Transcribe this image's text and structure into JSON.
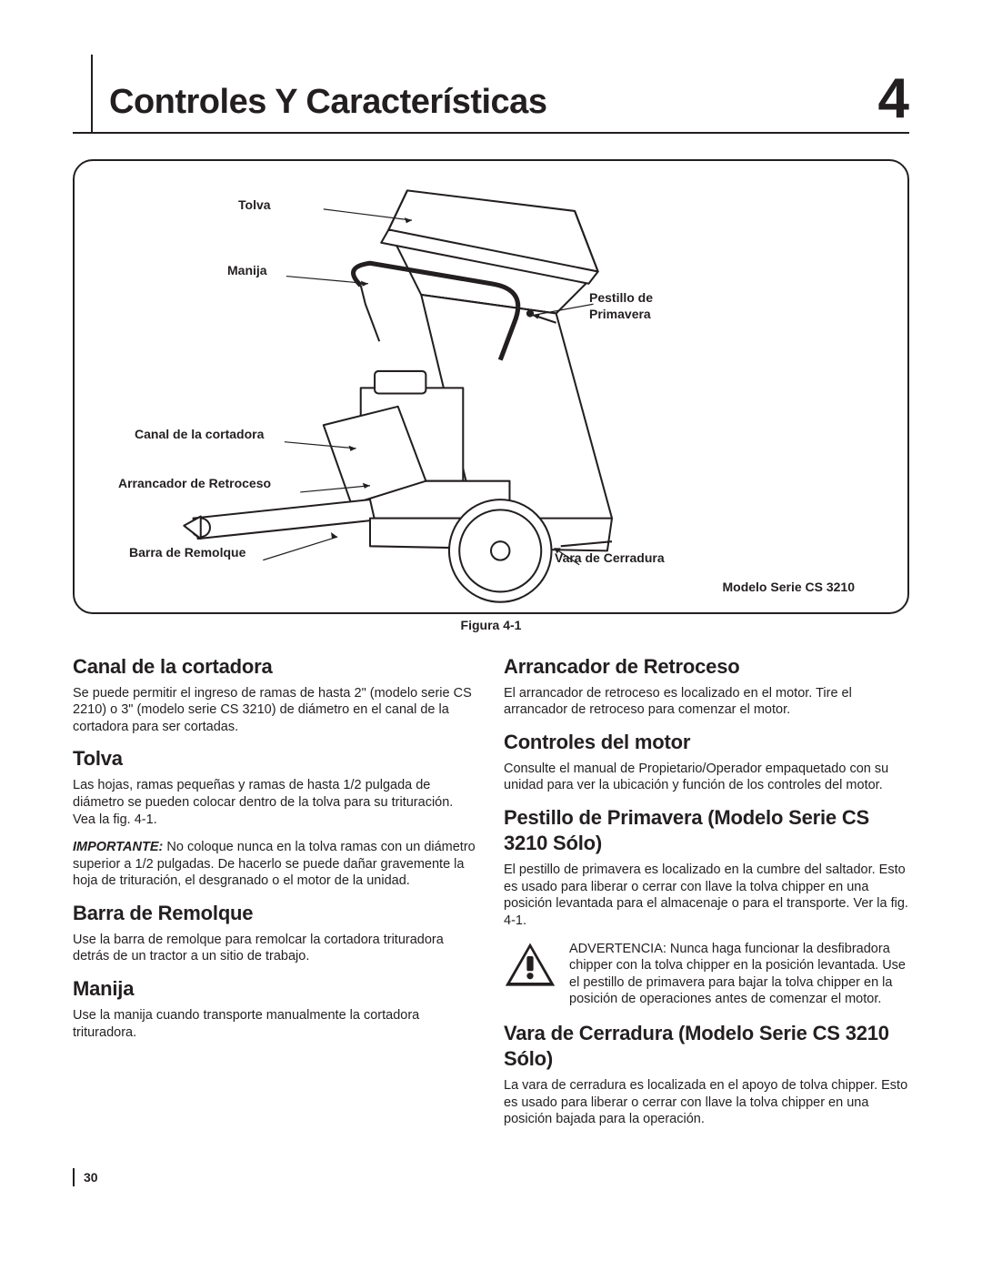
{
  "header": {
    "title": "Controles Y Características",
    "chapter_number": "4"
  },
  "figure": {
    "caption": "Figura 4-1",
    "model_label": "Modelo Serie CS 3210",
    "callouts": {
      "tolva": "Tolva",
      "manija": "Manija",
      "pestillo": "Pestillo de\nPrimavera",
      "canal": "Canal de la cortadora",
      "arrancador": "Arrancador de Retroceso",
      "barra": "Barra de Remolque",
      "vara": "Vara de Cerradura"
    },
    "diagram_stroke": "#231f20",
    "diagram_fill": "#ffffff"
  },
  "left_column": [
    {
      "heading": "Canal de la cortadora",
      "paragraphs": [
        {
          "text": "Se puede permitir el ingreso de ramas de hasta 2\" (modelo serie CS 2210)  o 3\" (modelo serie CS 3210) de diámetro en el canal de la cortadora para ser cortadas."
        }
      ]
    },
    {
      "heading": "Tolva",
      "paragraphs": [
        {
          "text": "Las hojas, ramas pequeñas y ramas de hasta 1/2 pulgada de diámetro se pueden colocar dentro de la tolva para su trituración. Vea la fig. 4-1."
        },
        {
          "lead": "IMPORTANTE:",
          "lead_style": "italic",
          "text": " No coloque nunca en la tolva ramas con un diámetro superior a 1/2 pulgadas. De hacerlo se puede dañar gravemente la hoja de trituración, el desgranado o el motor de la unidad."
        }
      ]
    },
    {
      "heading": "Barra de Remolque",
      "paragraphs": [
        {
          "text": "Use la barra de remolque para remolcar la cortadora trituradora detrás de un tractor a un sitio de trabajo."
        }
      ]
    },
    {
      "heading": "Manija",
      "paragraphs": [
        {
          "text": "Use la manija cuando transporte manualmente la cortadora trituradora."
        }
      ]
    }
  ],
  "right_column": [
    {
      "heading": "Arrancador de Retroceso",
      "paragraphs": [
        {
          "text": "El arrancador de retroceso es localizado en el motor. Tire el arrancador de retroceso para comenzar el motor."
        }
      ]
    },
    {
      "heading": "Controles del motor",
      "paragraphs": [
        {
          "text": "Consulte el manual de Propietario/Operador empaquetado con su unidad para ver la ubicación y función de los controles del motor."
        }
      ]
    },
    {
      "heading": "Pestillo de Primavera (Modelo Serie CS 3210 Sólo)",
      "paragraphs": [
        {
          "text": "El pestillo de primavera es localizado en la cumbre del saltador. Esto es usado para liberar o cerrar con llave la tolva chipper en una posición levantada para el almacenaje o para el transporte. Ver la fig. 4-1."
        }
      ],
      "warning": {
        "lead": "ADVERTENCIA:",
        "text": " Nunca haga funcionar la desfibradora chipper con la tolva chipper en la posición levantada. Use el pestillo de primavera para bajar la tolva chipper en la posición de operaciones antes de comenzar el motor."
      }
    },
    {
      "heading": "Vara de Cerradura (Modelo Serie CS 3210 Sólo)",
      "paragraphs": [
        {
          "text": "La vara de cerradura es localizada en el apoyo de tolva chipper. Esto es usado para liberar o cerrar con llave la tolva chipper en una posición bajada para la operación."
        }
      ]
    }
  ],
  "page_number": "30"
}
